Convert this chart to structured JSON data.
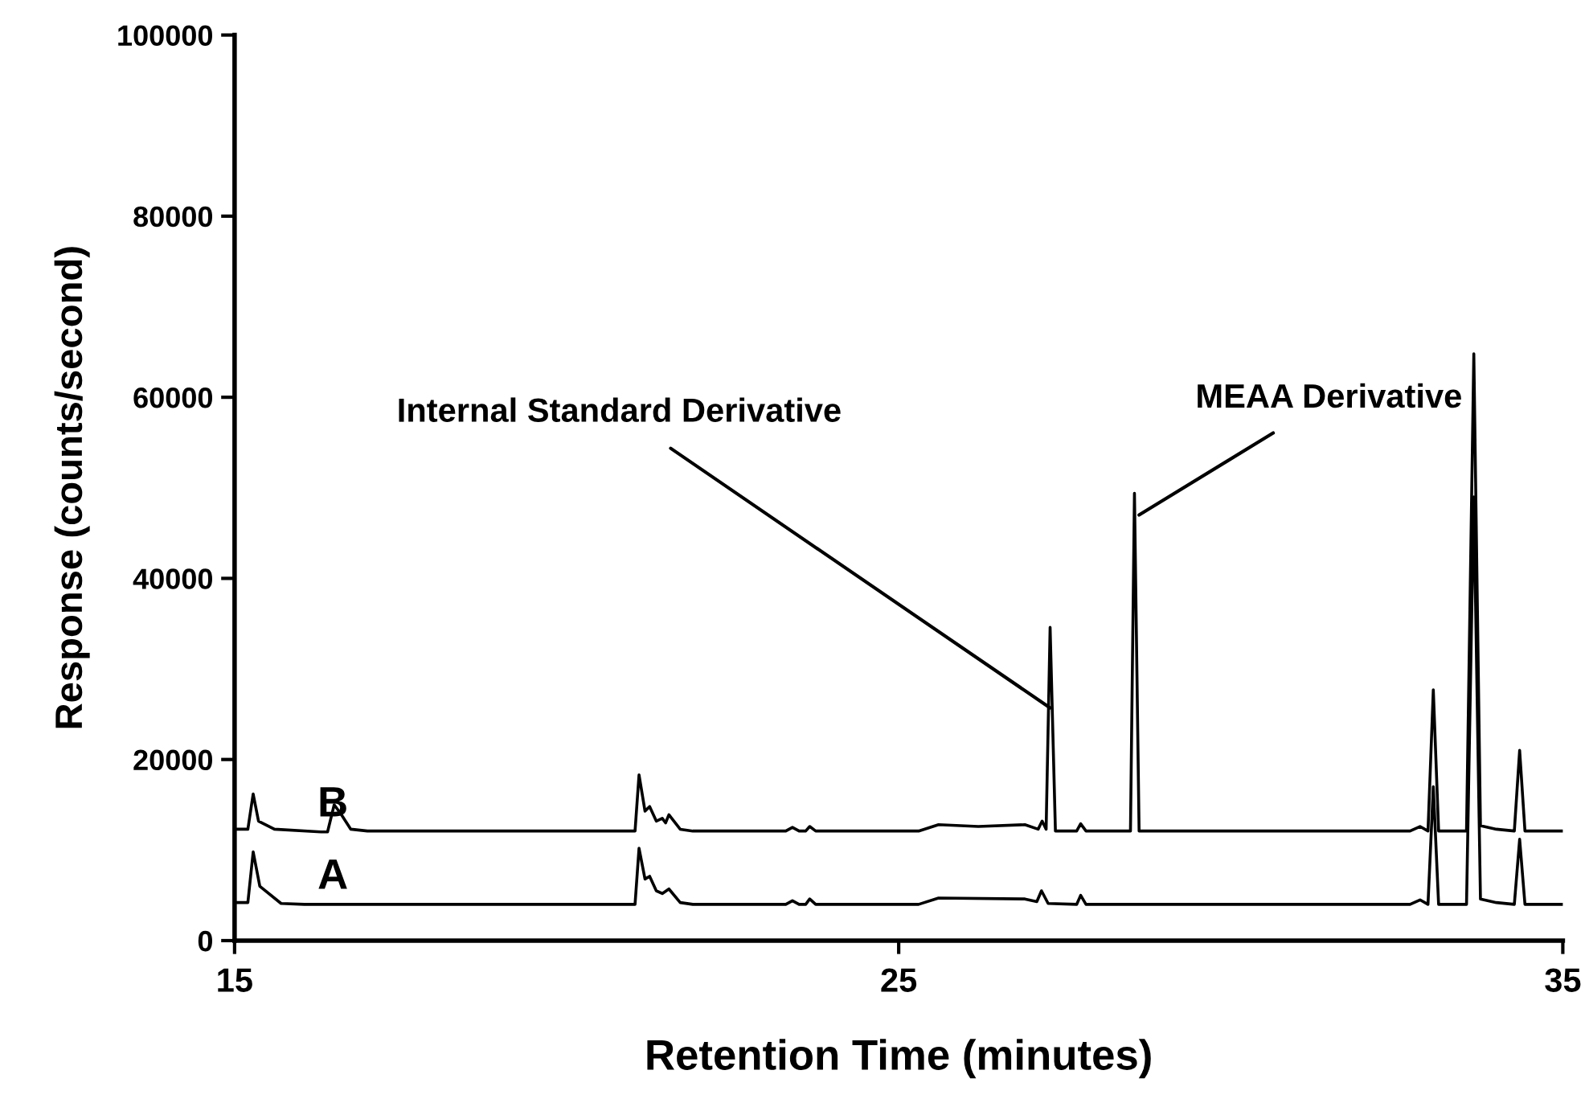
{
  "chart_data": {
    "type": "line",
    "xlabel": "Retention Time (minutes)",
    "ylabel": "Response (counts/second)",
    "xlim": [
      15,
      35
    ],
    "xticks": [
      15,
      25,
      35
    ],
    "ylim": [
      0,
      100000
    ],
    "yticks": [
      0,
      20000,
      40000,
      60000,
      80000,
      100000
    ],
    "grid": false,
    "legend": false,
    "marker": "none",
    "line_style": "solid",
    "series": [
      {
        "name": "B",
        "color": "#000000",
        "x": [
          15.0,
          15.2,
          15.28,
          15.36,
          15.6,
          16.3,
          16.4,
          16.5,
          16.6,
          16.75,
          17.0,
          20.9,
          21.03,
          21.09,
          21.18,
          21.25,
          21.35,
          21.44,
          21.49,
          21.54,
          21.71,
          21.9,
          23.3,
          23.4,
          23.5,
          23.6,
          23.66,
          23.75,
          25.3,
          25.6,
          26.2,
          26.9,
          27.1,
          27.16,
          27.22,
          27.28,
          27.36,
          27.68,
          27.74,
          27.82,
          28.4,
          28.49,
          28.55,
          28.62,
          32.7,
          32.85,
          32.97,
          33.05,
          33.13,
          33.55,
          33.66,
          33.76,
          34.0,
          34.27,
          34.35,
          34.43,
          35.0
        ],
        "values": [
          12300,
          12300,
          16200,
          13200,
          12300,
          12000,
          12000,
          15000,
          14000,
          12300,
          12100,
          12100,
          12100,
          18300,
          14300,
          14800,
          13200,
          13500,
          13000,
          13900,
          12300,
          12100,
          12100,
          12500,
          12100,
          12100,
          12600,
          12100,
          12100,
          12800,
          12600,
          12800,
          12300,
          13200,
          12300,
          34600,
          12100,
          12100,
          12900,
          12100,
          12100,
          12100,
          49400,
          12100,
          12100,
          12600,
          12100,
          27700,
          12100,
          12100,
          64800,
          12700,
          12300,
          12100,
          21000,
          12100,
          12100
        ]
      },
      {
        "name": "A",
        "color": "#000000",
        "x": [
          15.0,
          15.2,
          15.28,
          15.38,
          15.7,
          16.05,
          16.7,
          21.03,
          21.09,
          21.18,
          21.25,
          21.35,
          21.44,
          21.54,
          21.71,
          21.9,
          23.3,
          23.4,
          23.5,
          23.6,
          23.66,
          23.75,
          25.3,
          25.6,
          26.9,
          27.08,
          27.15,
          27.25,
          27.68,
          27.74,
          27.82,
          32.7,
          32.85,
          32.97,
          33.05,
          33.13,
          33.55,
          33.66,
          33.76,
          34.0,
          34.27,
          34.35,
          34.43,
          35.0
        ],
        "values": [
          4200,
          4200,
          9800,
          6000,
          4100,
          4000,
          4000,
          4000,
          10200,
          6800,
          7100,
          5500,
          5200,
          5700,
          4200,
          4000,
          4000,
          4400,
          4000,
          4000,
          4600,
          4000,
          4000,
          4700,
          4600,
          4300,
          5500,
          4100,
          4000,
          5000,
          4000,
          4000,
          4500,
          4000,
          17000,
          4000,
          4000,
          49000,
          4600,
          4200,
          4000,
          11200,
          4000,
          4000
        ]
      }
    ],
    "annotations": [
      {
        "text": "Internal Standard Derivative",
        "x": 27.28,
        "y": 25700
      },
      {
        "text": "MEAA Derivative",
        "x": 28.62,
        "y": 47000
      }
    ]
  }
}
